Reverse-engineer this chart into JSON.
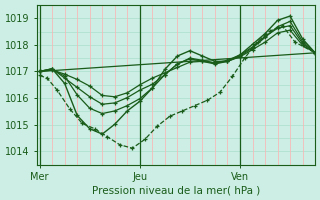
{
  "xlabel": "Pression niveau de la mer( hPa )",
  "background_color": "#cceee4",
  "grid_color_v": "#ffb0b0",
  "grid_color_h": "#aaddcc",
  "line_color_dark": "#1a5c1a",
  "line_color_mid": "#2a7a2a",
  "tick_label_color": "#1a5c1a",
  "ylim": [
    1013.5,
    1019.5
  ],
  "yticks": [
    1014,
    1015,
    1016,
    1017,
    1018,
    1019
  ],
  "xtick_labels": [
    "Mer",
    "Jeu",
    "Ven"
  ],
  "xtick_positions": [
    0.0,
    2.0,
    4.0
  ],
  "xlim": [
    -0.05,
    5.5
  ],
  "lines": [
    {
      "x": [
        0.0,
        0.25,
        0.5,
        0.75,
        1.0,
        1.25,
        1.5,
        1.75,
        2.0,
        2.25,
        2.5,
        2.75,
        3.0,
        3.25,
        3.5,
        3.75,
        4.0,
        4.25,
        4.5,
        4.75,
        5.0,
        5.25,
        5.5
      ],
      "y": [
        1017.0,
        1017.05,
        1016.9,
        1016.7,
        1016.45,
        1016.1,
        1016.05,
        1016.2,
        1016.5,
        1016.75,
        1016.95,
        1017.15,
        1017.35,
        1017.38,
        1017.32,
        1017.38,
        1017.55,
        1017.82,
        1018.1,
        1018.45,
        1018.55,
        1017.98,
        1017.7
      ],
      "lw": 0.9,
      "ls": "-",
      "marker": true
    },
    {
      "x": [
        0.0,
        0.25,
        0.5,
        0.75,
        1.0,
        1.25,
        1.5,
        1.75,
        2.0,
        2.25,
        2.5,
        2.75,
        3.0,
        3.25,
        3.5,
        3.75,
        4.0,
        4.25,
        4.5,
        4.75,
        5.0,
        5.25,
        5.5
      ],
      "y": [
        1017.0,
        1017.1,
        1016.75,
        1016.4,
        1016.05,
        1015.77,
        1015.82,
        1016.02,
        1016.3,
        1016.52,
        1016.88,
        1017.28,
        1017.5,
        1017.42,
        1017.32,
        1017.42,
        1017.62,
        1017.92,
        1018.32,
        1018.62,
        1018.72,
        1018.05,
        1017.7
      ],
      "lw": 0.9,
      "ls": "-",
      "marker": true
    },
    {
      "x": [
        0.0,
        0.25,
        0.5,
        0.75,
        1.0,
        1.25,
        1.5,
        1.75,
        2.0,
        2.25,
        2.5,
        2.75,
        3.0,
        3.25,
        3.5,
        3.75,
        4.0,
        4.25,
        4.5,
        4.75,
        5.0,
        5.25,
        5.5
      ],
      "y": [
        1017.0,
        1017.1,
        1016.82,
        1016.12,
        1015.62,
        1015.42,
        1015.52,
        1015.72,
        1015.98,
        1016.38,
        1016.88,
        1017.28,
        1017.48,
        1017.38,
        1017.28,
        1017.38,
        1017.58,
        1017.88,
        1018.28,
        1018.68,
        1018.88,
        1018.12,
        1017.7
      ],
      "lw": 0.9,
      "ls": "-",
      "marker": true
    },
    {
      "x": [
        0.0,
        0.25,
        0.5,
        0.75,
        1.0,
        1.25,
        1.5,
        1.75,
        2.0,
        2.25,
        2.5,
        2.75,
        3.0,
        3.25,
        3.5,
        3.75,
        4.0,
        4.25,
        4.5,
        4.75,
        5.0,
        5.25,
        5.5
      ],
      "y": [
        1017.0,
        1017.1,
        1016.55,
        1015.35,
        1014.85,
        1014.65,
        1015.02,
        1015.52,
        1015.88,
        1016.38,
        1017.08,
        1017.58,
        1017.78,
        1017.58,
        1017.38,
        1017.38,
        1017.62,
        1018.02,
        1018.42,
        1018.92,
        1019.08,
        1018.22,
        1017.7
      ],
      "lw": 1.0,
      "ls": "-",
      "marker": true
    },
    {
      "x": [
        0.0,
        0.15,
        0.35,
        0.6,
        0.85,
        1.1,
        1.35,
        1.6,
        1.85,
        2.1,
        2.35,
        2.6,
        2.85,
        3.1,
        3.35,
        3.6,
        3.85,
        4.1,
        4.35,
        4.6,
        4.85,
        5.1,
        5.5
      ],
      "y": [
        1016.85,
        1016.75,
        1016.3,
        1015.6,
        1015.05,
        1014.85,
        1014.55,
        1014.25,
        1014.12,
        1014.45,
        1014.95,
        1015.32,
        1015.52,
        1015.72,
        1015.92,
        1016.22,
        1016.82,
        1017.52,
        1018.12,
        1018.52,
        1018.72,
        1018.1,
        1017.7
      ],
      "lw": 0.9,
      "ls": "--",
      "marker": true
    },
    {
      "x": [
        0.0,
        5.5
      ],
      "y": [
        1017.0,
        1017.7
      ],
      "lw": 0.9,
      "ls": "-",
      "marker": false
    }
  ]
}
